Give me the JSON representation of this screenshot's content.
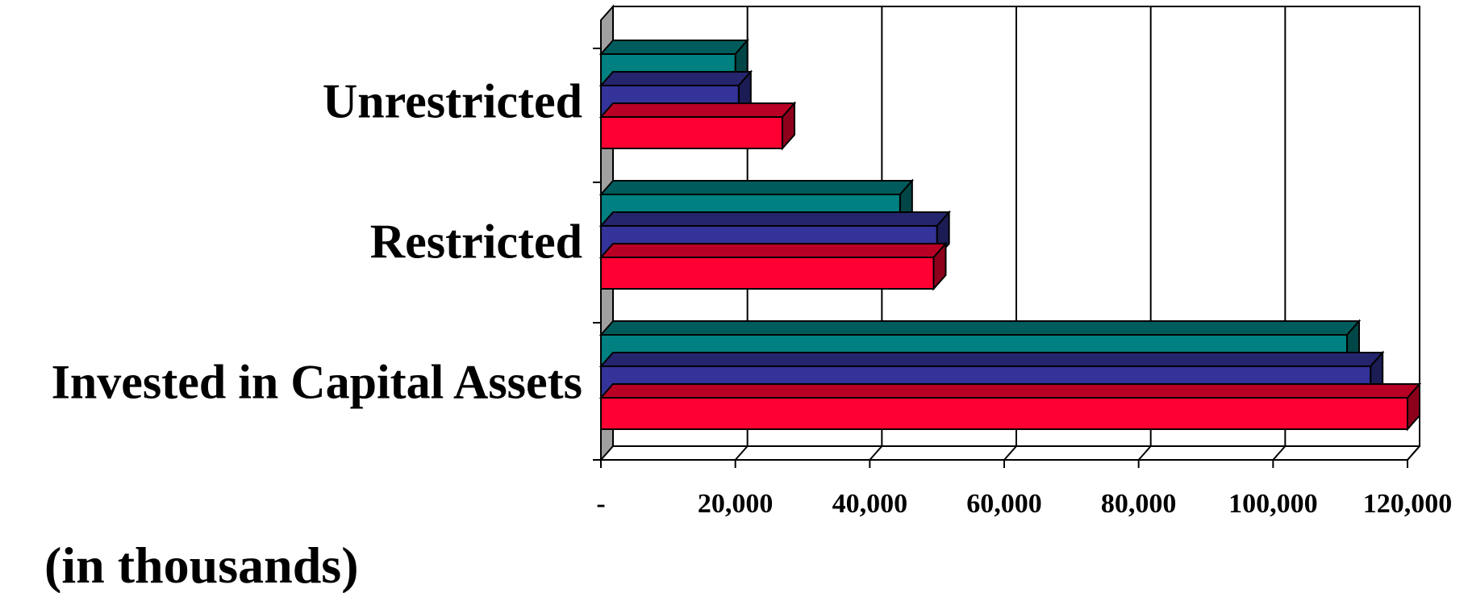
{
  "chart_data": {
    "type": "bar",
    "orientation": "horizontal",
    "style": "3d",
    "categories": [
      "Unrestricted",
      "Restricted",
      "Invested in Capital Assets"
    ],
    "series": [
      {
        "values": [
          20000,
          44500,
          111000
        ],
        "color": "#008080"
      },
      {
        "values": [
          20500,
          50000,
          114500
        ],
        "color": "#333399"
      },
      {
        "values": [
          27000,
          49500,
          120000
        ],
        "color": "#FF0033"
      }
    ],
    "x_ticks": [
      "-",
      "20,000",
      "40,000",
      "60,000",
      "80,000",
      "100,000",
      "120,000"
    ],
    "xlim": [
      0,
      120000
    ],
    "grid": true,
    "legend": "none",
    "unit_note": "(in thousands)"
  }
}
